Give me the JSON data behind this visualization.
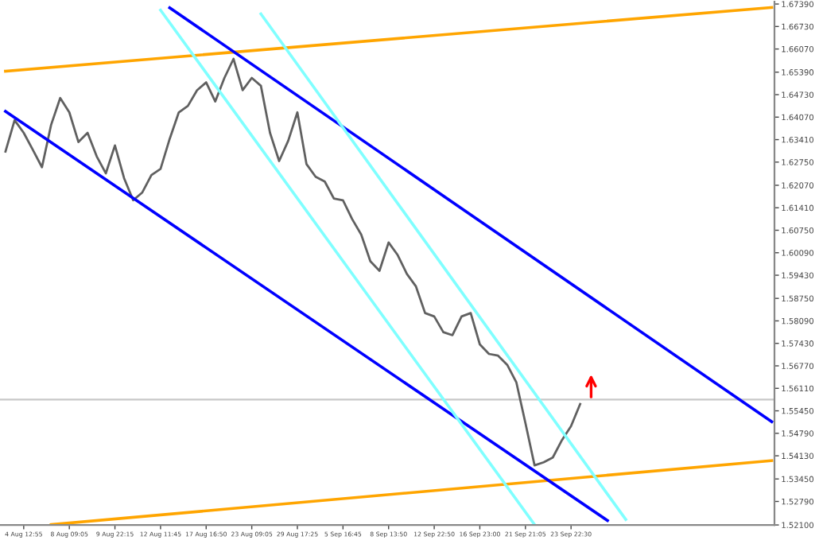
{
  "chart_data": {
    "type": "line",
    "categories": [
      null,
      null,
      "4 Aug 12:55",
      null,
      null,
      null,
      null,
      "8 Aug 09:05",
      null,
      null,
      null,
      null,
      "9 Aug 22:15",
      null,
      null,
      null,
      null,
      "12 Aug 11:45",
      null,
      null,
      null,
      null,
      "17 Aug 16:50",
      null,
      null,
      null,
      null,
      "23 Aug 09:05",
      null,
      null,
      null,
      null,
      "29 Aug 17:25",
      null,
      null,
      null,
      null,
      "5 Sep 16:45",
      null,
      null,
      null,
      null,
      "8 Sep 13:50",
      null,
      null,
      null,
      null,
      "12 Sep 22:50",
      null,
      null,
      null,
      null,
      "16 Sep 23:00",
      null,
      null,
      null,
      null,
      "21 Sep 21:05",
      null,
      null,
      null,
      null,
      "23 Sep 22:30",
      null,
      null,
      null,
      null,
      null,
      null,
      null,
      null,
      null,
      null,
      null,
      null,
      null,
      null,
      null,
      null,
      null,
      null,
      null,
      null,
      null,
      null
    ],
    "series": [
      {
        "color": "#606060",
        "values": [
          1.6306,
          1.6398,
          1.6361,
          1.6311,
          1.626,
          1.6384,
          1.6463,
          1.6421,
          1.6334,
          1.6361,
          1.6292,
          1.6242,
          1.6324,
          1.6228,
          1.6163,
          1.6186,
          1.6237,
          1.6255,
          1.6343,
          1.6421,
          1.644,
          1.6486,
          1.6509,
          1.6453,
          1.6522,
          1.6578,
          1.6486,
          1.6522,
          1.6499,
          1.6361,
          1.6278,
          1.6338,
          1.6421,
          1.6269,
          1.6232,
          1.6218,
          1.6168,
          1.6163,
          1.6108,
          1.6062,
          1.5984,
          1.5956,
          1.6039,
          1.6002,
          1.5947,
          1.591,
          1.5832,
          1.5822,
          1.5776,
          1.5767,
          1.5822,
          1.5832,
          1.574,
          1.5712,
          1.5707,
          1.568,
          1.5629,
          1.5509,
          1.5385,
          1.5394,
          1.5408,
          1.5459,
          1.55,
          1.5565,
          null,
          null,
          null,
          null,
          null,
          null,
          null,
          null,
          null,
          null,
          null,
          null,
          null,
          null,
          null,
          null,
          null,
          null,
          null,
          null,
          null
        ]
      },
      {
        "color": "#ffa500",
        "values": [
          1.6542,
          null,
          null,
          null,
          null,
          null,
          null,
          null,
          null,
          null,
          null,
          null,
          null,
          null,
          null,
          null,
          null,
          null,
          null,
          null,
          null,
          null,
          null,
          null,
          null,
          null,
          null,
          null,
          null,
          null,
          null,
          null,
          null,
          null,
          null,
          null,
          null,
          null,
          null,
          null,
          null,
          null,
          null,
          null,
          null,
          null,
          null,
          null,
          null,
          null,
          null,
          null,
          null,
          null,
          null,
          null,
          null,
          null,
          null,
          null,
          null,
          null,
          null,
          null,
          null,
          null,
          null,
          null,
          null,
          null,
          null,
          null,
          null,
          null,
          null,
          null,
          null,
          null,
          null,
          null,
          null,
          null,
          null,
          null,
          1.6729
        ]
      },
      {
        "color": "#ffa500",
        "values": [
          null,
          null,
          null,
          null,
          null,
          1.5211,
          null,
          null,
          null,
          null,
          null,
          null,
          null,
          null,
          null,
          null,
          null,
          null,
          null,
          null,
          null,
          null,
          null,
          null,
          null,
          null,
          null,
          null,
          null,
          null,
          null,
          null,
          null,
          null,
          null,
          null,
          null,
          null,
          null,
          null,
          null,
          null,
          null,
          null,
          null,
          null,
          null,
          null,
          null,
          null,
          null,
          null,
          null,
          null,
          null,
          null,
          null,
          null,
          null,
          null,
          null,
          null,
          null,
          null,
          null,
          null,
          null,
          null,
          null,
          null,
          null,
          null,
          null,
          null,
          null,
          null,
          null,
          null,
          null,
          null,
          null,
          null,
          null,
          null,
          1.5399
        ]
      },
      {
        "color": "#0000ff",
        "values": [
          null,
          null,
          null,
          null,
          null,
          null,
          null,
          null,
          null,
          null,
          null,
          null,
          null,
          null,
          null,
          null,
          null,
          null,
          1.6728,
          null,
          null,
          null,
          null,
          null,
          null,
          null,
          null,
          null,
          null,
          null,
          null,
          null,
          null,
          null,
          null,
          null,
          null,
          null,
          null,
          null,
          null,
          null,
          null,
          null,
          null,
          null,
          null,
          null,
          null,
          null,
          null,
          null,
          null,
          null,
          null,
          null,
          null,
          null,
          null,
          null,
          null,
          null,
          null,
          null,
          null,
          null,
          null,
          null,
          null,
          null,
          null,
          null,
          null,
          null,
          null,
          null,
          null,
          null,
          null,
          null,
          null,
          null,
          null,
          null,
          1.5513
        ]
      },
      {
        "color": "#0000ff",
        "values": [
          1.6424,
          null,
          null,
          null,
          null,
          null,
          null,
          null,
          null,
          null,
          null,
          null,
          null,
          null,
          null,
          null,
          null,
          null,
          null,
          null,
          null,
          null,
          null,
          null,
          null,
          null,
          null,
          null,
          null,
          null,
          null,
          null,
          null,
          null,
          null,
          null,
          null,
          null,
          null,
          null,
          null,
          null,
          null,
          null,
          null,
          null,
          null,
          null,
          null,
          null,
          null,
          null,
          null,
          null,
          null,
          null,
          null,
          null,
          null,
          null,
          null,
          null,
          null,
          null,
          null,
          null,
          1.5223,
          null,
          null,
          null,
          null,
          null,
          null,
          null,
          null,
          null,
          null,
          null,
          null,
          null,
          null,
          null,
          null,
          null,
          null
        ]
      },
      {
        "color": "#80ffff",
        "values": [
          null,
          null,
          null,
          null,
          null,
          null,
          null,
          null,
          null,
          null,
          null,
          null,
          null,
          null,
          null,
          null,
          null,
          1.6721,
          null,
          null,
          null,
          null,
          null,
          null,
          null,
          null,
          null,
          null,
          null,
          null,
          null,
          null,
          null,
          null,
          null,
          null,
          null,
          null,
          null,
          null,
          null,
          null,
          null,
          null,
          null,
          null,
          null,
          null,
          null,
          null,
          null,
          null,
          null,
          null,
          null,
          null,
          null,
          null,
          1.5211,
          null,
          null,
          null,
          null,
          null,
          null,
          null,
          null,
          null,
          null,
          null,
          null,
          null,
          null,
          null,
          null,
          null,
          null,
          null,
          null,
          null,
          null,
          null,
          null,
          null,
          null
        ]
      },
      {
        "color": "#80ffff",
        "values": [
          null,
          null,
          null,
          null,
          null,
          null,
          null,
          null,
          null,
          null,
          null,
          null,
          null,
          null,
          null,
          null,
          null,
          null,
          null,
          null,
          null,
          null,
          null,
          null,
          null,
          null,
          null,
          null,
          1.671,
          null,
          null,
          null,
          null,
          null,
          null,
          null,
          null,
          null,
          null,
          null,
          null,
          null,
          null,
          null,
          null,
          null,
          null,
          null,
          null,
          null,
          null,
          null,
          null,
          null,
          null,
          null,
          null,
          null,
          null,
          null,
          null,
          null,
          null,
          null,
          null,
          null,
          null,
          null,
          1.5226,
          null,
          null,
          null,
          null,
          null,
          null,
          null,
          null,
          null,
          null,
          null,
          null,
          null,
          null,
          null,
          null
        ]
      }
    ],
    "ref_lines": [
      {
        "axis": "y",
        "value": 1.5578,
        "color": "#c8c8c8"
      }
    ],
    "ylim": [
      1.521,
      1.6746
    ],
    "yticks": [
      {
        "value": 1.521,
        "label": "1.52100"
      },
      {
        "value": 1.5279,
        "label": "1.52790"
      },
      {
        "value": 1.5345,
        "label": "1.53450"
      },
      {
        "value": 1.5413,
        "label": "1.54130"
      },
      {
        "value": 1.5479,
        "label": "1.54790"
      },
      {
        "value": 1.5545,
        "label": "1.55450"
      },
      {
        "value": 1.5611,
        "label": "1.56110"
      },
      {
        "value": 1.5677,
        "label": "1.56770"
      },
      {
        "value": 1.5743,
        "label": "1.57430"
      },
      {
        "value": 1.5809,
        "label": "1.58090"
      },
      {
        "value": 1.5875,
        "label": "1.58750"
      },
      {
        "value": 1.5943,
        "label": "1.59430"
      },
      {
        "value": 1.6009,
        "label": "1.60090"
      },
      {
        "value": 1.6075,
        "label": "1.60750"
      },
      {
        "value": 1.6141,
        "label": "1.61410"
      },
      {
        "value": 1.6207,
        "label": "1.62070"
      },
      {
        "value": 1.6275,
        "label": "1.62750"
      },
      {
        "value": 1.6341,
        "label": "1.63410"
      },
      {
        "value": 1.6407,
        "label": "1.64070"
      },
      {
        "value": 1.6473,
        "label": "1.64730"
      },
      {
        "value": 1.6539,
        "label": "1.65390"
      },
      {
        "value": 1.6607,
        "label": "1.66070"
      },
      {
        "value": 1.6673,
        "label": "1.66730"
      },
      {
        "value": 1.6739,
        "label": "1.67390"
      }
    ],
    "grid": false,
    "legend": false,
    "marker": "none",
    "line_style": "solid"
  }
}
